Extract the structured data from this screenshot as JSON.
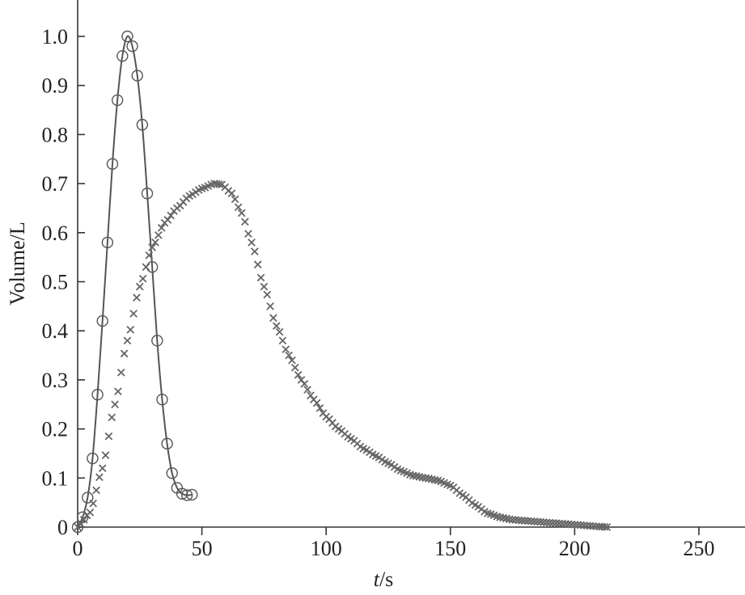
{
  "chart_data": {
    "type": "line",
    "title": "",
    "xlabel_italic": "t",
    "xlabel_unit": "/s",
    "ylabel": "Volume/L",
    "xlim": [
      0,
      270
    ],
    "ylim": [
      0,
      1.05
    ],
    "xticks": [
      0,
      50,
      100,
      150,
      200,
      250
    ],
    "xtick_labels": [
      "0",
      "50",
      "100",
      "150",
      "200",
      "250"
    ],
    "yticks": [
      0,
      0.1,
      0.2,
      0.3,
      0.4,
      0.5,
      0.6,
      0.7,
      0.8,
      0.9,
      1.0
    ],
    "ytick_labels": [
      "0",
      "0.1",
      "0.2",
      "0.3",
      "0.4",
      "0.5",
      "0.6",
      "0.7",
      "0.8",
      "0.9",
      "1.0"
    ],
    "grid": false,
    "series": [
      {
        "marker": "circle",
        "line": true,
        "x": [
          0,
          2,
          4,
          6,
          8,
          10,
          12,
          14,
          16,
          18,
          20,
          22,
          24,
          26,
          28,
          30,
          32,
          34,
          36,
          38,
          40,
          42,
          44,
          46
        ],
        "y": [
          0,
          0.02,
          0.06,
          0.14,
          0.27,
          0.42,
          0.58,
          0.74,
          0.87,
          0.96,
          1.0,
          0.98,
          0.92,
          0.82,
          0.68,
          0.53,
          0.38,
          0.26,
          0.17,
          0.11,
          0.08,
          0.068,
          0.065,
          0.066
        ]
      },
      {
        "marker": "cross",
        "line": false,
        "x": [
          0,
          5,
          10,
          15,
          20,
          25,
          30,
          35,
          40,
          45,
          50,
          55,
          58,
          62,
          66,
          70,
          75,
          80,
          85,
          90,
          95,
          100,
          105,
          110,
          115,
          120,
          125,
          130,
          135,
          140,
          145,
          150,
          155,
          160,
          165,
          170,
          175,
          180,
          185,
          190,
          195,
          200,
          205,
          210,
          213
        ],
        "y": [
          0,
          0.03,
          0.12,
          0.25,
          0.38,
          0.49,
          0.57,
          0.62,
          0.65,
          0.675,
          0.69,
          0.7,
          0.698,
          0.68,
          0.64,
          0.58,
          0.49,
          0.41,
          0.35,
          0.3,
          0.26,
          0.225,
          0.2,
          0.18,
          0.16,
          0.145,
          0.13,
          0.115,
          0.105,
          0.1,
          0.095,
          0.085,
          0.065,
          0.045,
          0.028,
          0.02,
          0.015,
          0.013,
          0.011,
          0.009,
          0.007,
          0.005,
          0.003,
          0.001,
          0
        ]
      }
    ]
  }
}
